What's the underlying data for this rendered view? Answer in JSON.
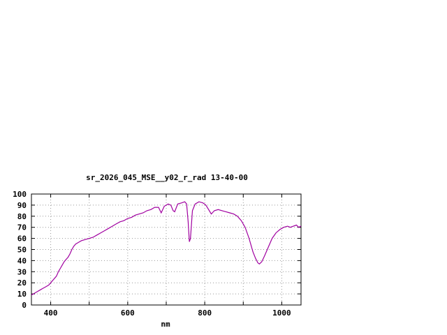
{
  "window": {
    "background": "#ffffff"
  },
  "chart_data": {
    "type": "line",
    "title": "sr_2026_045_MSE__y02_r_rad 13-40-00",
    "xlabel": "nm",
    "ylabel": "",
    "xlim": [
      350,
      1050
    ],
    "ylim": [
      0,
      100
    ],
    "xgrid_ticks": [
      400,
      500,
      600,
      700,
      800,
      900,
      1000
    ],
    "xtick_labels": [
      400,
      600,
      800,
      1000
    ],
    "yticks": [
      0,
      10,
      20,
      30,
      40,
      50,
      60,
      70,
      80,
      90,
      100
    ],
    "grid_on": true,
    "legend_position": "none",
    "line_color": "#a000a0",
    "grid_color": "#999999",
    "axis_color": "#000000",
    "points": [
      [
        350,
        9
      ],
      [
        355,
        10
      ],
      [
        360,
        11
      ],
      [
        365,
        12
      ],
      [
        370,
        13
      ],
      [
        375,
        14
      ],
      [
        380,
        15
      ],
      [
        385,
        16
      ],
      [
        390,
        17
      ],
      [
        395,
        18
      ],
      [
        400,
        20
      ],
      [
        405,
        22
      ],
      [
        410,
        24
      ],
      [
        415,
        26
      ],
      [
        420,
        30
      ],
      [
        425,
        33
      ],
      [
        430,
        36
      ],
      [
        435,
        39
      ],
      [
        440,
        41
      ],
      [
        445,
        43
      ],
      [
        450,
        46
      ],
      [
        455,
        50
      ],
      [
        460,
        53
      ],
      [
        465,
        55
      ],
      [
        470,
        56
      ],
      [
        475,
        57
      ],
      [
        480,
        58
      ],
      [
        490,
        59
      ],
      [
        500,
        60
      ],
      [
        510,
        61
      ],
      [
        520,
        63
      ],
      [
        530,
        65
      ],
      [
        540,
        67
      ],
      [
        550,
        69
      ],
      [
        560,
        71
      ],
      [
        570,
        73
      ],
      [
        580,
        75
      ],
      [
        590,
        76
      ],
      [
        600,
        78
      ],
      [
        610,
        79
      ],
      [
        620,
        81
      ],
      [
        630,
        82
      ],
      [
        640,
        83
      ],
      [
        650,
        85
      ],
      [
        660,
        86
      ],
      [
        670,
        88
      ],
      [
        680,
        88
      ],
      [
        687,
        83
      ],
      [
        695,
        89
      ],
      [
        705,
        91
      ],
      [
        712,
        90
      ],
      [
        718,
        85
      ],
      [
        722,
        84
      ],
      [
        730,
        91
      ],
      [
        740,
        92
      ],
      [
        748,
        93
      ],
      [
        753,
        91
      ],
      [
        757,
        75
      ],
      [
        760,
        57
      ],
      [
        763,
        60
      ],
      [
        768,
        85
      ],
      [
        775,
        91
      ],
      [
        785,
        93
      ],
      [
        795,
        92
      ],
      [
        803,
        90
      ],
      [
        810,
        86
      ],
      [
        817,
        82
      ],
      [
        825,
        85
      ],
      [
        835,
        86
      ],
      [
        845,
        85
      ],
      [
        855,
        84
      ],
      [
        865,
        83
      ],
      [
        875,
        82
      ],
      [
        885,
        80
      ],
      [
        895,
        76
      ],
      [
        905,
        70
      ],
      [
        915,
        60
      ],
      [
        925,
        48
      ],
      [
        932,
        42
      ],
      [
        938,
        38
      ],
      [
        942,
        37
      ],
      [
        948,
        39
      ],
      [
        955,
        44
      ],
      [
        965,
        52
      ],
      [
        975,
        60
      ],
      [
        985,
        65
      ],
      [
        995,
        68
      ],
      [
        1005,
        70
      ],
      [
        1015,
        71
      ],
      [
        1022,
        70
      ],
      [
        1030,
        71
      ],
      [
        1038,
        72
      ],
      [
        1044,
        70
      ],
      [
        1050,
        71
      ]
    ]
  }
}
